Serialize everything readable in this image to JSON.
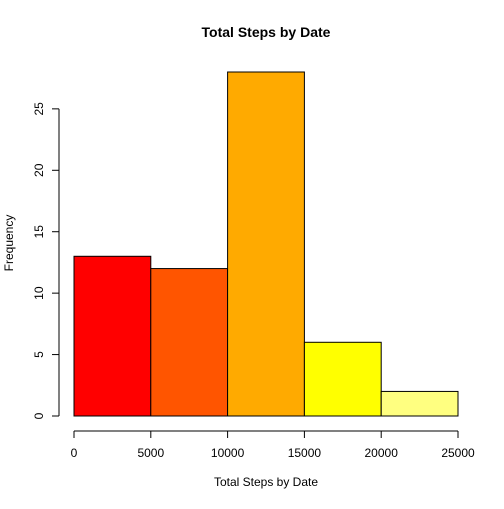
{
  "chart_data": {
    "type": "bar",
    "subtype": "histogram",
    "title": "Total Steps by Date",
    "xlabel": "Total Steps by Date",
    "ylabel": "Frequency",
    "bins": [
      {
        "start": 0,
        "end": 5000,
        "count": 13,
        "color": "#FF0000"
      },
      {
        "start": 5000,
        "end": 10000,
        "count": 12,
        "color": "#FF5500"
      },
      {
        "start": 10000,
        "end": 15000,
        "count": 28,
        "color": "#FFAA00"
      },
      {
        "start": 15000,
        "end": 20000,
        "count": 6,
        "color": "#FFFF00"
      },
      {
        "start": 20000,
        "end": 25000,
        "count": 2,
        "color": "#FFFF80"
      }
    ],
    "xlim": [
      0,
      25000
    ],
    "ylim": [
      0,
      28
    ],
    "xticks": [
      "0",
      "5000",
      "10000",
      "15000",
      "20000",
      "25000"
    ],
    "xtick_values": [
      0,
      5000,
      10000,
      15000,
      20000,
      25000
    ],
    "yticks": [
      "0",
      "5",
      "10",
      "15",
      "20",
      "25"
    ],
    "ytick_values": [
      0,
      5,
      10,
      15,
      20,
      25
    ],
    "grid": false,
    "legend": "none"
  }
}
